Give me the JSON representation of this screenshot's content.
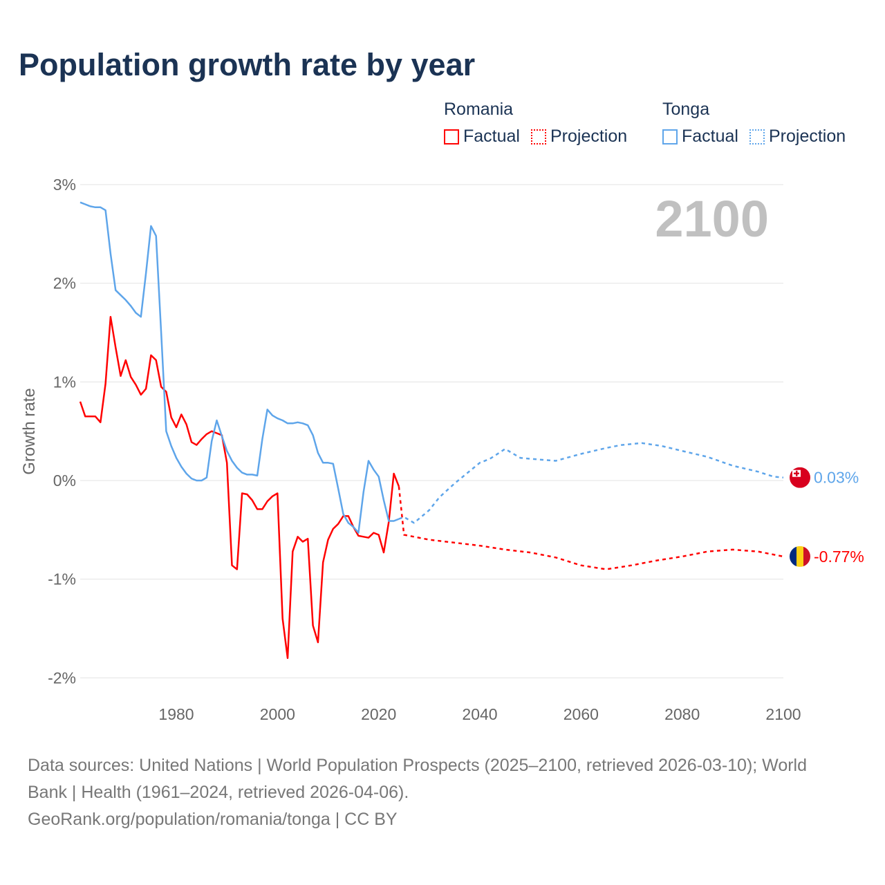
{
  "chart_data": {
    "type": "line",
    "title": "Population growth rate by year",
    "ylabel": "Growth rate",
    "xlabel": "",
    "ylim": [
      -2.2,
      3.0
    ],
    "xlim": [
      1961,
      2100
    ],
    "yticks": [
      3,
      2,
      1,
      0,
      -1,
      -2
    ],
    "ytick_labels": [
      "3%",
      "2%",
      "1%",
      "0%",
      "-1%",
      "-2%"
    ],
    "xticks": [
      1980,
      2000,
      2020,
      2040,
      2060,
      2080,
      2100
    ],
    "xtick_labels": [
      "1980",
      "2000",
      "2020",
      "2040",
      "2060",
      "2080",
      "2100"
    ],
    "grid": true,
    "year_label": "2100",
    "legend": {
      "placement": "top-right",
      "groups": [
        {
          "country": "Romania",
          "factual": "Factual",
          "projection": "Projection",
          "color": "#ff0000"
        },
        {
          "country": "Tonga",
          "factual": "Factual",
          "projection": "Projection",
          "color": "#5ea5ea"
        }
      ]
    },
    "series": [
      {
        "name": "Romania",
        "kind": "factual",
        "color": "#ff0000",
        "x": [
          1961,
          1962,
          1963,
          1964,
          1965,
          1966,
          1967,
          1968,
          1969,
          1970,
          1971,
          1972,
          1973,
          1974,
          1975,
          1976,
          1977,
          1978,
          1979,
          1980,
          1981,
          1982,
          1983,
          1984,
          1985,
          1986,
          1987,
          1988,
          1989,
          1990,
          1991,
          1992,
          1993,
          1994,
          1995,
          1996,
          1997,
          1998,
          1999,
          2000,
          2001,
          2002,
          2003,
          2004,
          2005,
          2006,
          2007,
          2008,
          2009,
          2010,
          2011,
          2012,
          2013,
          2014,
          2015,
          2016,
          2017,
          2018,
          2019,
          2020,
          2021,
          2022,
          2023,
          2024
        ],
        "values": [
          0.8,
          0.65,
          0.65,
          0.65,
          0.59,
          0.98,
          1.66,
          1.35,
          1.06,
          1.22,
          1.05,
          0.97,
          0.87,
          0.93,
          1.27,
          1.22,
          0.95,
          0.9,
          0.64,
          0.54,
          0.67,
          0.57,
          0.39,
          0.36,
          0.42,
          0.47,
          0.5,
          0.48,
          0.46,
          0.18,
          -0.86,
          -0.9,
          -0.13,
          -0.14,
          -0.2,
          -0.29,
          -0.29,
          -0.21,
          -0.16,
          -0.13,
          -1.4,
          -1.8,
          -0.72,
          -0.57,
          -0.62,
          -0.59,
          -1.47,
          -1.64,
          -0.83,
          -0.6,
          -0.49,
          -0.44,
          -0.36,
          -0.36,
          -0.47,
          -0.56,
          -0.57,
          -0.58,
          -0.53,
          -0.55,
          -0.73,
          -0.42,
          0.07,
          -0.06
        ]
      },
      {
        "name": "Romania",
        "kind": "projection",
        "color": "#ff0000",
        "x": [
          2024,
          2025,
          2030,
          2035,
          2040,
          2045,
          2050,
          2055,
          2060,
          2065,
          2070,
          2075,
          2080,
          2085,
          2090,
          2095,
          2100
        ],
        "values": [
          -0.06,
          -0.55,
          -0.6,
          -0.63,
          -0.66,
          -0.7,
          -0.73,
          -0.78,
          -0.86,
          -0.9,
          -0.86,
          -0.81,
          -0.77,
          -0.72,
          -0.7,
          -0.72,
          -0.77
        ]
      },
      {
        "name": "Tonga",
        "kind": "factual",
        "color": "#5ea5ea",
        "x": [
          1961,
          1962,
          1963,
          1964,
          1965,
          1966,
          1967,
          1968,
          1969,
          1970,
          1971,
          1972,
          1973,
          1974,
          1975,
          1976,
          1977,
          1978,
          1979,
          1980,
          1981,
          1982,
          1983,
          1984,
          1985,
          1986,
          1987,
          1988,
          1989,
          1990,
          1991,
          1992,
          1993,
          1994,
          1995,
          1996,
          1997,
          1998,
          1999,
          2000,
          2001,
          2002,
          2003,
          2004,
          2005,
          2006,
          2007,
          2008,
          2009,
          2010,
          2011,
          2012,
          2013,
          2014,
          2015,
          2016,
          2017,
          2018,
          2019,
          2020,
          2021,
          2022,
          2023,
          2024
        ],
        "values": [
          2.82,
          2.8,
          2.78,
          2.77,
          2.77,
          2.74,
          2.3,
          1.93,
          1.88,
          1.83,
          1.77,
          1.7,
          1.66,
          2.1,
          2.58,
          2.48,
          1.5,
          0.5,
          0.35,
          0.23,
          0.14,
          0.07,
          0.02,
          0.0,
          0.0,
          0.03,
          0.4,
          0.61,
          0.45,
          0.3,
          0.2,
          0.13,
          0.08,
          0.06,
          0.06,
          0.05,
          0.42,
          0.72,
          0.66,
          0.63,
          0.61,
          0.58,
          0.58,
          0.59,
          0.58,
          0.56,
          0.46,
          0.28,
          0.18,
          0.18,
          0.17,
          -0.08,
          -0.34,
          -0.43,
          -0.47,
          -0.53,
          -0.12,
          0.2,
          0.11,
          0.04,
          -0.2,
          -0.41,
          -0.41,
          -0.39
        ]
      },
      {
        "name": "Tonga",
        "kind": "projection",
        "color": "#5ea5ea",
        "x": [
          2024,
          2025,
          2027,
          2030,
          2032,
          2035,
          2040,
          2042,
          2045,
          2048,
          2050,
          2055,
          2060,
          2065,
          2068,
          2072,
          2076,
          2080,
          2085,
          2090,
          2095,
          2098,
          2100
        ],
        "values": [
          -0.39,
          -0.37,
          -0.43,
          -0.3,
          -0.17,
          -0.03,
          0.18,
          0.22,
          0.32,
          0.23,
          0.22,
          0.2,
          0.27,
          0.33,
          0.36,
          0.38,
          0.35,
          0.3,
          0.24,
          0.15,
          0.09,
          0.04,
          0.03
        ]
      }
    ],
    "end_labels": [
      {
        "country": "Tonga",
        "value": 0.03,
        "text": "0.03%",
        "color": "#5ea5ea",
        "flag": "tonga-flag-icon"
      },
      {
        "country": "Romania",
        "value": -0.77,
        "text": "-0.77%",
        "color": "#ff0000",
        "flag": "romania-flag-icon"
      }
    ]
  },
  "footer": {
    "sources": "Data sources: United Nations | World Population Prospects (2025–2100, retrieved 2026-03-10); World Bank | Health (1961–2024, retrieved 2026-04-06).",
    "credit": "GeoRank.org/population/romania/tonga | CC BY"
  }
}
